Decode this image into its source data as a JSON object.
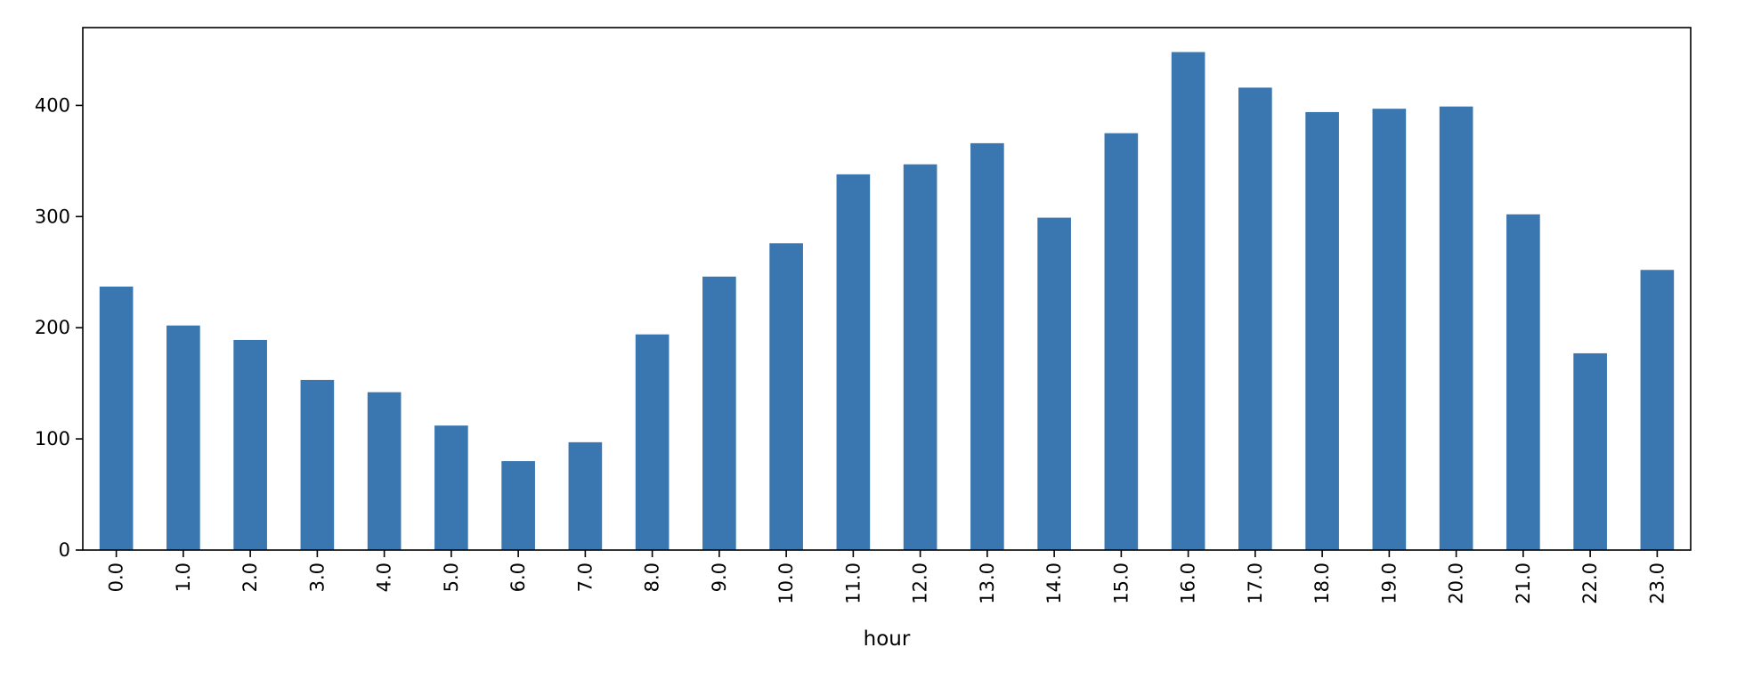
{
  "chart_data": {
    "type": "bar",
    "title": "",
    "xlabel": "hour",
    "ylabel": "",
    "categories": [
      "0.0",
      "1.0",
      "2.0",
      "3.0",
      "4.0",
      "5.0",
      "6.0",
      "7.0",
      "8.0",
      "9.0",
      "10.0",
      "11.0",
      "12.0",
      "13.0",
      "14.0",
      "15.0",
      "16.0",
      "17.0",
      "18.0",
      "19.0",
      "20.0",
      "21.0",
      "22.0",
      "23.0"
    ],
    "values": [
      237,
      202,
      189,
      153,
      142,
      112,
      80,
      97,
      194,
      246,
      276,
      338,
      347,
      366,
      299,
      375,
      448,
      416,
      394,
      397,
      399,
      302,
      177,
      252
    ],
    "ylim": [
      0,
      470
    ],
    "yticks": [
      "0",
      "100",
      "200",
      "300",
      "400"
    ],
    "bar_color": "#3a76af",
    "grid": false,
    "legend": "none"
  }
}
